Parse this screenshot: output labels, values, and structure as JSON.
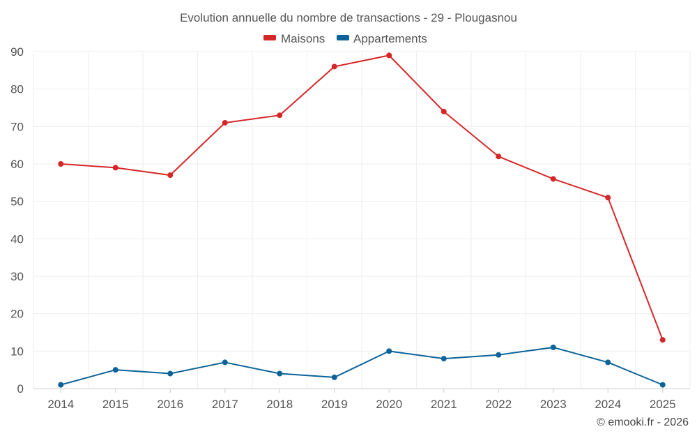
{
  "chart_data": {
    "type": "line",
    "title": "Evolution annuelle du nombre de transactions - 29 - Plougasnou",
    "categories": [
      "2014",
      "2015",
      "2016",
      "2017",
      "2018",
      "2019",
      "2020",
      "2021",
      "2022",
      "2023",
      "2024",
      "2025"
    ],
    "series": [
      {
        "name": "Maisons",
        "color": "#d62728",
        "values": [
          60,
          59,
          57,
          71,
          73,
          86,
          89,
          74,
          62,
          56,
          51,
          13
        ]
      },
      {
        "name": "Appartements",
        "color": "#0b6399",
        "values": [
          1,
          5,
          4,
          7,
          4,
          3,
          10,
          8,
          9,
          11,
          7,
          1
        ]
      }
    ],
    "ylim": [
      0,
      90
    ],
    "yticks": [
      0,
      10,
      20,
      30,
      40,
      50,
      60,
      70,
      80,
      90
    ],
    "grid": true,
    "legend_position": "top-center",
    "xlabel": "",
    "ylabel": ""
  },
  "credit": "© emooki.fr - 2026"
}
